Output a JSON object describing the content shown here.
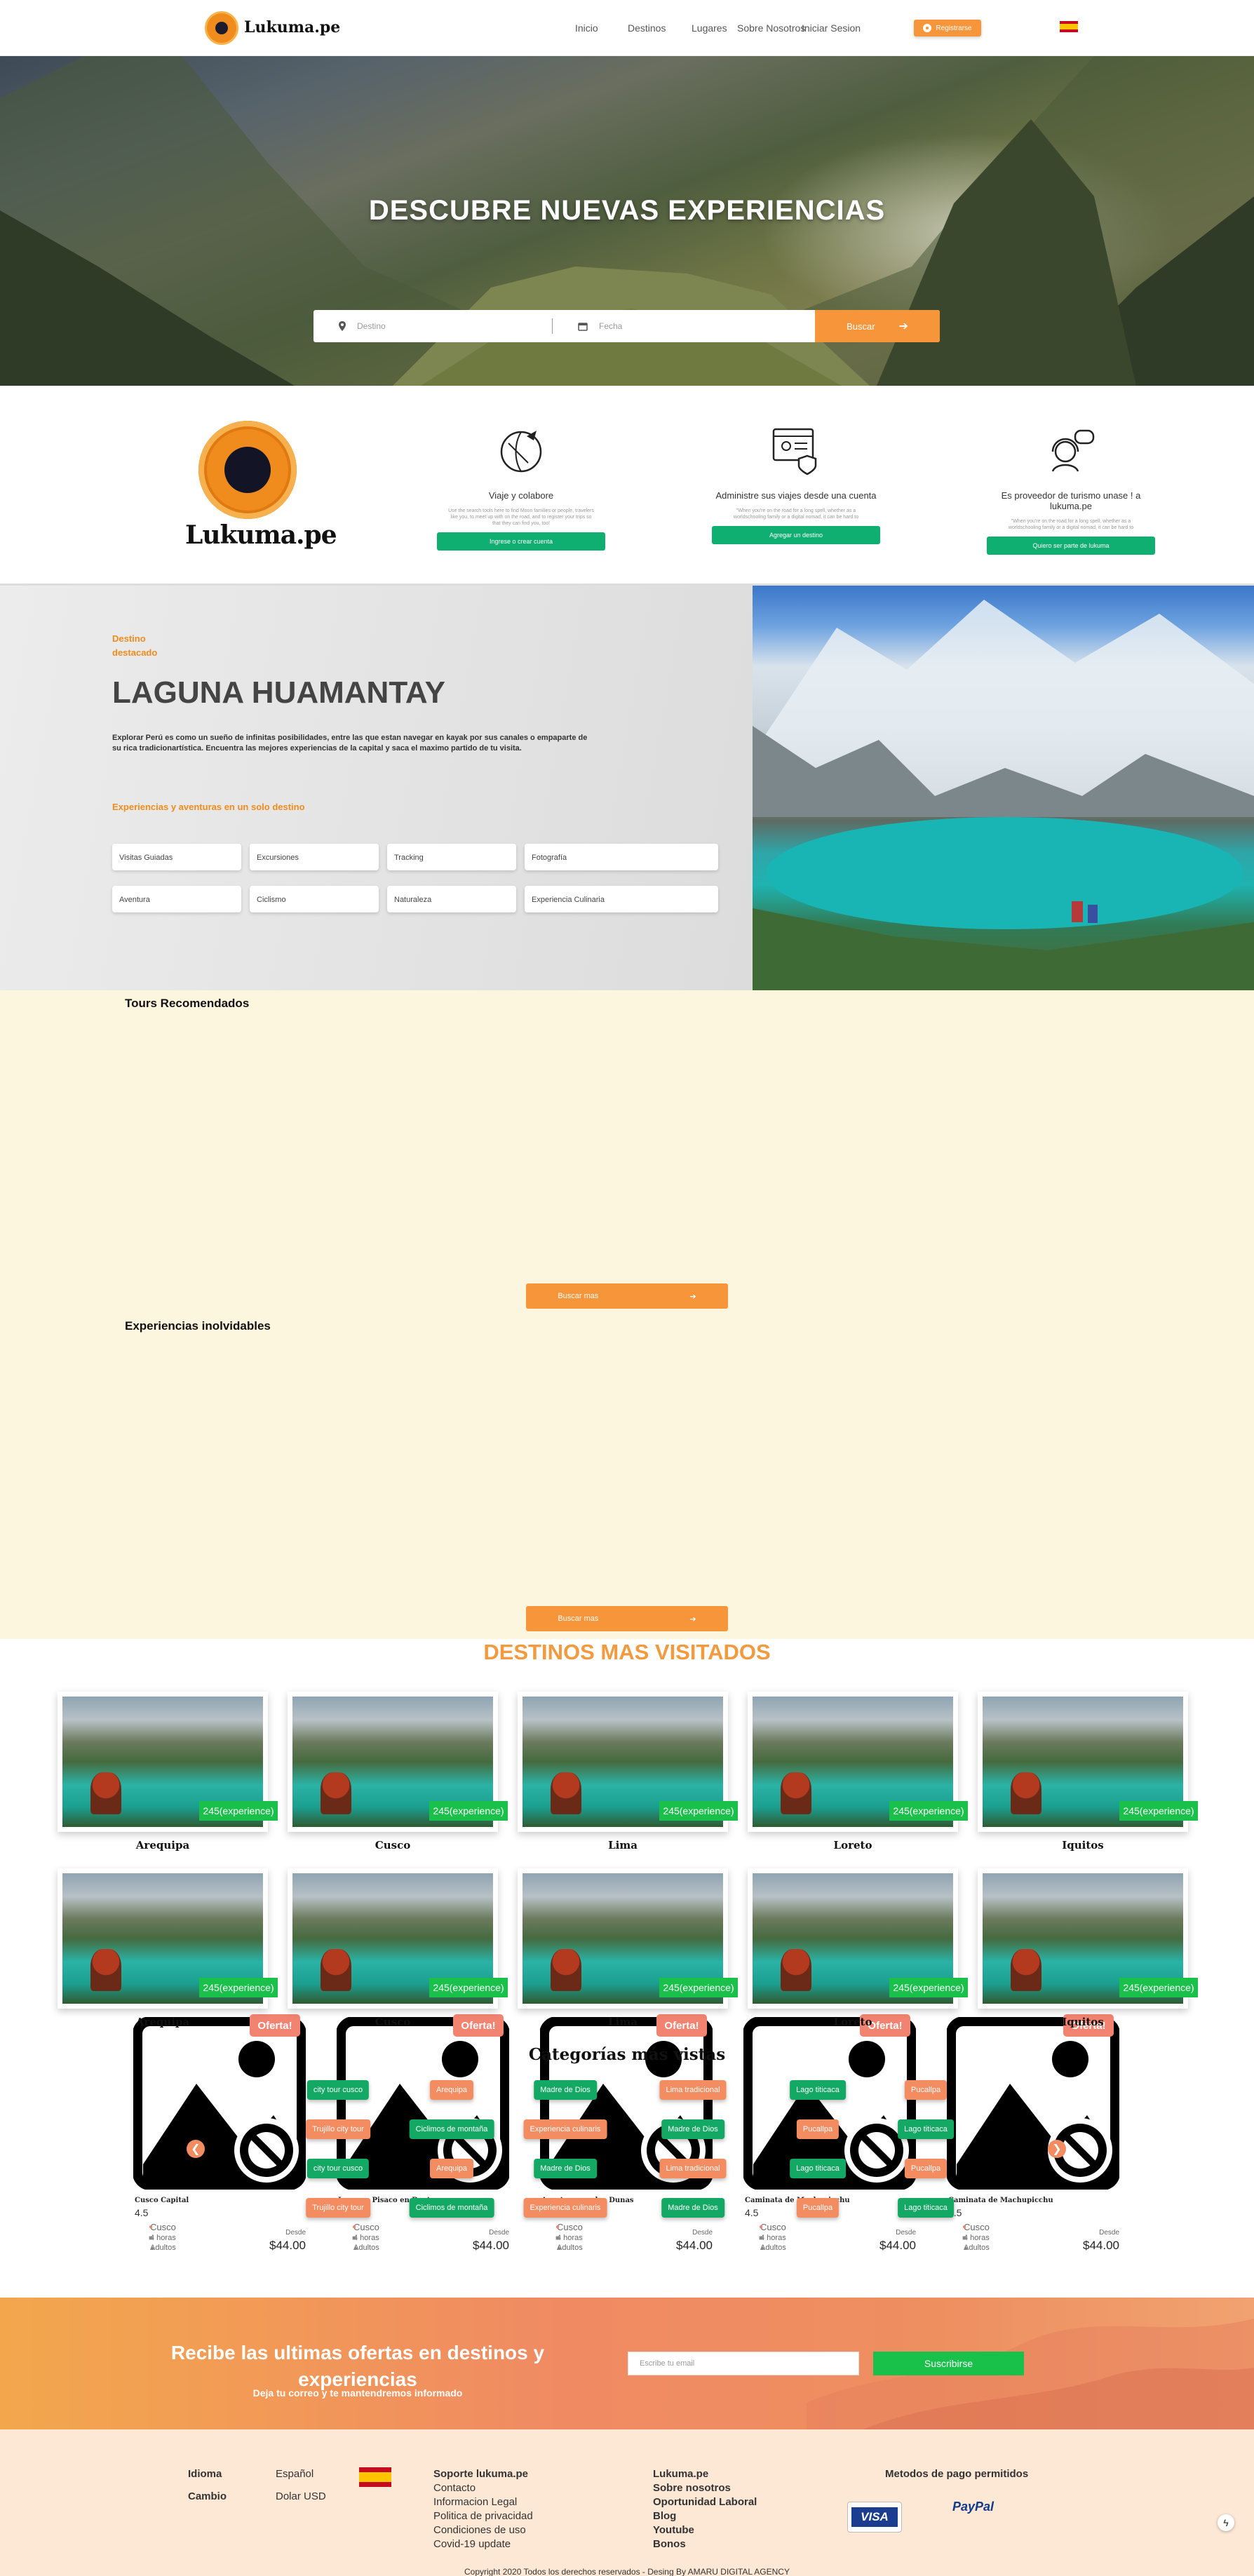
{
  "nav": {
    "brand": "Lukuma.pe",
    "links": [
      "Inicio",
      "Destinos",
      "Lugares",
      "Sobre Nosotros",
      "Iniciar Sesion"
    ],
    "register_label": "Registrarse",
    "language_flag": "spain-flag"
  },
  "hero": {
    "title": "DESCUBRE NUEVAS EXPERIENCIAS",
    "destination_placeholder": "Destino",
    "date_placeholder": "Fecha",
    "search_label": "Buscar"
  },
  "brand_block": {
    "name": "Lukuma.pe"
  },
  "features": [
    {
      "icon": "travel-globe-icon",
      "title": "Viaje y colabore",
      "desc": "Use the search tools here to find Moon families or people, travelers like you, to meet up with on the road, and to register your trips so that they can find you, too!",
      "button": "Ingrese o crear cuenta"
    },
    {
      "icon": "admin-profile-icon",
      "title": "Administre sus viajes desde una cuenta",
      "desc": "\"When you're on the road for a long spell, whether as a worldschooling family or a digital nomad, it can be hard to",
      "button": "Agregar un destino"
    },
    {
      "icon": "support-agent-icon",
      "title": "Es proveedor de turismo unase ! a lukuma.pe",
      "desc": "\"When you're on the road for a long spell, whether as a worldschooling family or a digital nomad, it can be hard to",
      "button": "Quiero ser parte de lukuma"
    }
  ],
  "featured": {
    "kicker": "Destino destacado",
    "title": "LAGUNA HUAMANTAY",
    "description": "Explorar Perú es como un sueño de infinitas posibilidades, entre las que estan navegar en kayak por sus canales o empaparte de su rica tradicionartística. Encuentra las mejores experiencias de la capital y saca el maximo partido de tu visita.",
    "subtitle": "Experiencias y aventuras en un solo destino",
    "chips": [
      "Visitas Guiadas",
      "Excursiones",
      "Tracking",
      "Fotografía",
      "Aventura",
      "Ciclismo",
      "Naturaleza",
      "Experiencia Culinaria"
    ]
  },
  "tours": {
    "sections": [
      "Tours Recomendados",
      "Experiencias inolvidables"
    ],
    "more_label": "Buscar mas",
    "offer_label": "Oferta!",
    "from_label": "Desde",
    "cards": [
      {
        "name": "Cusco Capital",
        "rating": "4.5",
        "city": "Cusco",
        "duration": "4 horas",
        "people": "Adultos",
        "price": "$44.00"
      },
      {
        "name": "Lugares Pisaco en Boat",
        "rating": "4.5",
        "city": "Cusco",
        "duration": "4 horas",
        "people": "Adultos",
        "price": "$44.00"
      },
      {
        "name": "Aventuras en los Dunas",
        "rating": "4.5",
        "city": "Cusco",
        "duration": "4 horas",
        "people": "Adultos",
        "price": "$44.00"
      },
      {
        "name": "Caminata de Machupicchu",
        "rating": "4.5",
        "city": "Cusco",
        "duration": "4 horas",
        "people": "Adultos",
        "price": "$44.00"
      },
      {
        "name": "Caminata de Machupicchu",
        "rating": "4.5",
        "city": "Cusco",
        "duration": "4 horas",
        "people": "Adultos",
        "price": "$44.00"
      }
    ]
  },
  "destinations": {
    "title": "DESTINOS MAS VISITADOS",
    "badge": "245(experience)",
    "names": [
      "Arequipa",
      "Cusco",
      "Lima",
      "Loreto",
      "Iquitos",
      "Arequipa",
      "Cusco",
      "Lima",
      "Loreto",
      "Iquitos"
    ]
  },
  "categories": {
    "title": "Categorías más vistas",
    "rows": [
      [
        "city tour cusco",
        "Arequipa",
        "Madre de Dios",
        "Lima tradicional",
        "Lago titicaca",
        "Pucallpa"
      ],
      [
        "Trujillo city tour",
        "Ciclimos de montaña",
        "Experiencia culinaris",
        "Madre de Dios",
        "Pucallpa",
        "Lago titicaca"
      ],
      [
        "city tour cusco",
        "Arequipa",
        "Madre de Dios",
        "Lima tradicional",
        "Lago titicaca",
        "Pucallpa"
      ],
      [
        "Trujillo city tour",
        "Ciclimos de montaña",
        "Experiencia culinaris",
        "Madre de Dios",
        "Pucallpa",
        "Lago titicaca"
      ]
    ]
  },
  "newsletter": {
    "title": "Recibe las ultimas ofertas en destinos y experiencias",
    "subtitle": "Deja tu correo y te mantendremos informado",
    "email_placeholder": "Escribe tu email",
    "subscribe": "Suscribirse"
  },
  "footer": {
    "idioma_label": "Idioma",
    "idioma_value": "Español",
    "cambio_label": "Cambio",
    "cambio_value": "Dolar USD",
    "support_title": "Soporte lukuma.pe",
    "support_links": [
      "Contacto",
      "Informacion Legal",
      "Politica de privacidad",
      "Condiciones de uso",
      "Covid-19 update"
    ],
    "company_links": [
      "Lukuma.pe",
      "Sobre nosotros",
      "Oportunidad Laboral",
      "Blog",
      "Youtube",
      "Bonos"
    ],
    "payments_title": "Metodos de pago permitidos",
    "visa": "VISA",
    "paypal": "PayPal",
    "copyright": "Copyright 2020 Todos los derechos reservados - Desing By AMARU DIGITAL AGENCY"
  },
  "colors": {
    "accent": "#f7953a",
    "green": "#13a864",
    "salmon": "#f48c62",
    "tours_bg": "#fdf6df",
    "footer_bg": "#fde8d6"
  }
}
